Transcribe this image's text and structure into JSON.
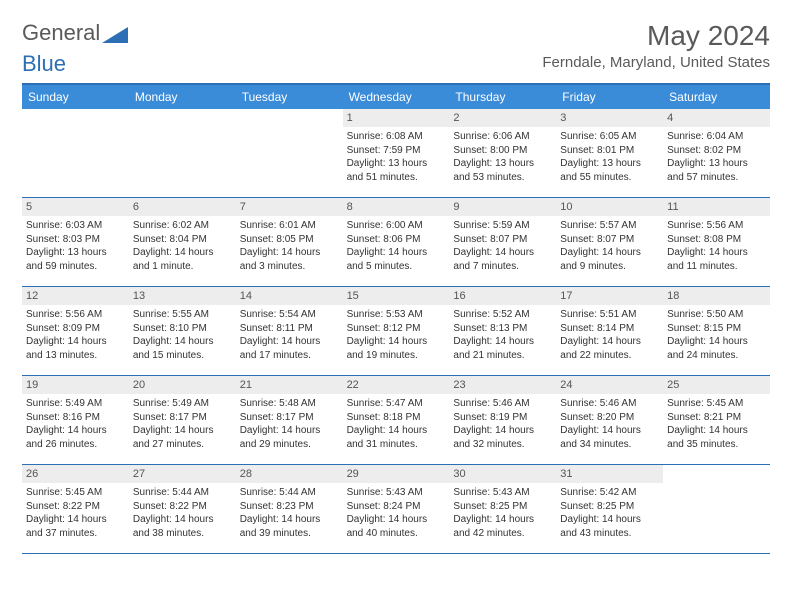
{
  "brand": {
    "part1": "General",
    "part2": "Blue"
  },
  "title": "May 2024",
  "location": "Ferndale, Maryland, United States",
  "colors": {
    "header_bg": "#3a8bd8",
    "border": "#2c6fb5",
    "daynum_bg": "#ededed",
    "text": "#333333",
    "muted": "#5a5a5a"
  },
  "day_names": [
    "Sunday",
    "Monday",
    "Tuesday",
    "Wednesday",
    "Thursday",
    "Friday",
    "Saturday"
  ],
  "weeks": [
    [
      null,
      null,
      null,
      {
        "n": "1",
        "sr": "6:08 AM",
        "ss": "7:59 PM",
        "dl": "13 hours and 51 minutes."
      },
      {
        "n": "2",
        "sr": "6:06 AM",
        "ss": "8:00 PM",
        "dl": "13 hours and 53 minutes."
      },
      {
        "n": "3",
        "sr": "6:05 AM",
        "ss": "8:01 PM",
        "dl": "13 hours and 55 minutes."
      },
      {
        "n": "4",
        "sr": "6:04 AM",
        "ss": "8:02 PM",
        "dl": "13 hours and 57 minutes."
      }
    ],
    [
      {
        "n": "5",
        "sr": "6:03 AM",
        "ss": "8:03 PM",
        "dl": "13 hours and 59 minutes."
      },
      {
        "n": "6",
        "sr": "6:02 AM",
        "ss": "8:04 PM",
        "dl": "14 hours and 1 minute."
      },
      {
        "n": "7",
        "sr": "6:01 AM",
        "ss": "8:05 PM",
        "dl": "14 hours and 3 minutes."
      },
      {
        "n": "8",
        "sr": "6:00 AM",
        "ss": "8:06 PM",
        "dl": "14 hours and 5 minutes."
      },
      {
        "n": "9",
        "sr": "5:59 AM",
        "ss": "8:07 PM",
        "dl": "14 hours and 7 minutes."
      },
      {
        "n": "10",
        "sr": "5:57 AM",
        "ss": "8:07 PM",
        "dl": "14 hours and 9 minutes."
      },
      {
        "n": "11",
        "sr": "5:56 AM",
        "ss": "8:08 PM",
        "dl": "14 hours and 11 minutes."
      }
    ],
    [
      {
        "n": "12",
        "sr": "5:56 AM",
        "ss": "8:09 PM",
        "dl": "14 hours and 13 minutes."
      },
      {
        "n": "13",
        "sr": "5:55 AM",
        "ss": "8:10 PM",
        "dl": "14 hours and 15 minutes."
      },
      {
        "n": "14",
        "sr": "5:54 AM",
        "ss": "8:11 PM",
        "dl": "14 hours and 17 minutes."
      },
      {
        "n": "15",
        "sr": "5:53 AM",
        "ss": "8:12 PM",
        "dl": "14 hours and 19 minutes."
      },
      {
        "n": "16",
        "sr": "5:52 AM",
        "ss": "8:13 PM",
        "dl": "14 hours and 21 minutes."
      },
      {
        "n": "17",
        "sr": "5:51 AM",
        "ss": "8:14 PM",
        "dl": "14 hours and 22 minutes."
      },
      {
        "n": "18",
        "sr": "5:50 AM",
        "ss": "8:15 PM",
        "dl": "14 hours and 24 minutes."
      }
    ],
    [
      {
        "n": "19",
        "sr": "5:49 AM",
        "ss": "8:16 PM",
        "dl": "14 hours and 26 minutes."
      },
      {
        "n": "20",
        "sr": "5:49 AM",
        "ss": "8:17 PM",
        "dl": "14 hours and 27 minutes."
      },
      {
        "n": "21",
        "sr": "5:48 AM",
        "ss": "8:17 PM",
        "dl": "14 hours and 29 minutes."
      },
      {
        "n": "22",
        "sr": "5:47 AM",
        "ss": "8:18 PM",
        "dl": "14 hours and 31 minutes."
      },
      {
        "n": "23",
        "sr": "5:46 AM",
        "ss": "8:19 PM",
        "dl": "14 hours and 32 minutes."
      },
      {
        "n": "24",
        "sr": "5:46 AM",
        "ss": "8:20 PM",
        "dl": "14 hours and 34 minutes."
      },
      {
        "n": "25",
        "sr": "5:45 AM",
        "ss": "8:21 PM",
        "dl": "14 hours and 35 minutes."
      }
    ],
    [
      {
        "n": "26",
        "sr": "5:45 AM",
        "ss": "8:22 PM",
        "dl": "14 hours and 37 minutes."
      },
      {
        "n": "27",
        "sr": "5:44 AM",
        "ss": "8:22 PM",
        "dl": "14 hours and 38 minutes."
      },
      {
        "n": "28",
        "sr": "5:44 AM",
        "ss": "8:23 PM",
        "dl": "14 hours and 39 minutes."
      },
      {
        "n": "29",
        "sr": "5:43 AM",
        "ss": "8:24 PM",
        "dl": "14 hours and 40 minutes."
      },
      {
        "n": "30",
        "sr": "5:43 AM",
        "ss": "8:25 PM",
        "dl": "14 hours and 42 minutes."
      },
      {
        "n": "31",
        "sr": "5:42 AM",
        "ss": "8:25 PM",
        "dl": "14 hours and 43 minutes."
      },
      null
    ]
  ],
  "labels": {
    "sunrise": "Sunrise: ",
    "sunset": "Sunset: ",
    "daylight": "Daylight: "
  }
}
